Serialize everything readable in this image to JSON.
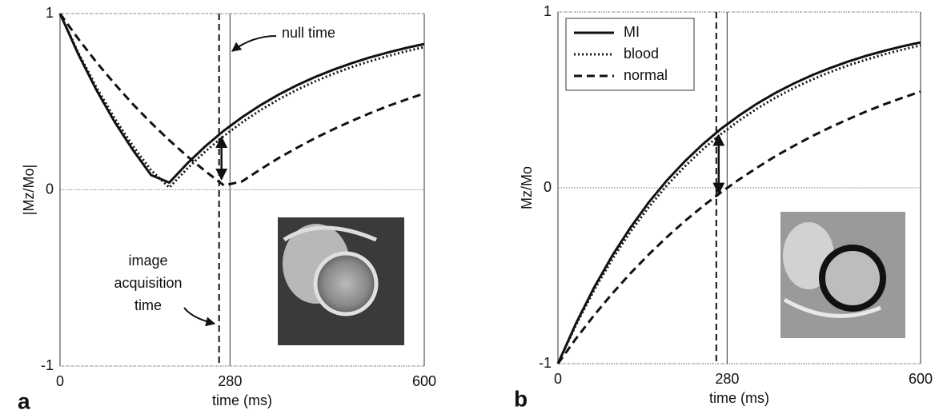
{
  "chart_data": [
    {
      "type": "line",
      "panel_label": "a",
      "xlabel": "time (ms)",
      "ylabel": "|Mz/Mo|",
      "xlim": [
        0,
        600
      ],
      "ylim": [
        -1,
        1
      ],
      "xticks": [
        0,
        280,
        600
      ],
      "yticks": [
        -1,
        0,
        1
      ],
      "grid": true,
      "acquisition_time": 262,
      "null_label": "null time",
      "acquisition_label": [
        "image",
        "acquisition",
        "time"
      ],
      "x": [
        0,
        30,
        60,
        90,
        120,
        150,
        180,
        210,
        240,
        270,
        300,
        330,
        360,
        390,
        420,
        450,
        480,
        510,
        540,
        570,
        600
      ],
      "series": [
        {
          "name": "MI",
          "color": "#111111",
          "style": "solid",
          "values": [
            1,
            0.77,
            0.566,
            0.385,
            0.226,
            0.084,
            0.041,
            0.151,
            0.249,
            0.336,
            0.412,
            0.48,
            0.54,
            0.593,
            0.64,
            0.681,
            0.718,
            0.751,
            0.779,
            0.805,
            0.827
          ]
        },
        {
          "name": "blood",
          "color": "#111111",
          "style": "dotted",
          "values": [
            1,
            0.778,
            0.581,
            0.405,
            0.249,
            0.111,
            0.013,
            0.122,
            0.22,
            0.306,
            0.383,
            0.452,
            0.513,
            0.567,
            0.615,
            0.658,
            0.696,
            0.729,
            0.759,
            0.786,
            0.81
          ]
        },
        {
          "name": "normal",
          "color": "#111111",
          "style": "dashed",
          "values": [
            1,
            0.857,
            0.724,
            0.601,
            0.486,
            0.38,
            0.281,
            0.189,
            0.104,
            0.025,
            0.048,
            0.116,
            0.18,
            0.238,
            0.293,
            0.343,
            0.39,
            0.434,
            0.475,
            0.512,
            0.547
          ]
        }
      ]
    },
    {
      "type": "line",
      "panel_label": "b",
      "xlabel": "time (ms)",
      "ylabel": "Mz/Mo",
      "xlim": [
        0,
        600
      ],
      "ylim": [
        -1,
        1
      ],
      "xticks": [
        0,
        280,
        600
      ],
      "yticks": [
        -1,
        0,
        1
      ],
      "grid": true,
      "acquisition_time": 262,
      "legend": "upper left",
      "x": [
        0,
        30,
        60,
        90,
        120,
        150,
        180,
        210,
        240,
        270,
        300,
        330,
        360,
        390,
        420,
        450,
        480,
        510,
        540,
        570,
        600
      ],
      "series": [
        {
          "name": "MI",
          "color": "#111111",
          "style": "solid",
          "values": [
            -1,
            -0.77,
            -0.566,
            -0.385,
            -0.226,
            -0.084,
            0.041,
            0.151,
            0.249,
            0.336,
            0.412,
            0.48,
            0.54,
            0.593,
            0.64,
            0.681,
            0.718,
            0.751,
            0.779,
            0.805,
            0.827
          ]
        },
        {
          "name": "blood",
          "color": "#111111",
          "style": "dotted",
          "values": [
            -1,
            -0.778,
            -0.581,
            -0.405,
            -0.249,
            -0.111,
            0.013,
            0.122,
            0.22,
            0.306,
            0.383,
            0.452,
            0.513,
            0.567,
            0.615,
            0.658,
            0.696,
            0.729,
            0.759,
            0.786,
            0.81
          ]
        },
        {
          "name": "normal",
          "color": "#111111",
          "style": "dashed",
          "values": [
            -1,
            -0.857,
            -0.724,
            -0.601,
            -0.486,
            -0.38,
            -0.281,
            -0.189,
            -0.104,
            -0.025,
            0.048,
            0.116,
            0.18,
            0.238,
            0.293,
            0.343,
            0.39,
            0.434,
            0.475,
            0.512,
            0.547
          ]
        }
      ]
    }
  ]
}
